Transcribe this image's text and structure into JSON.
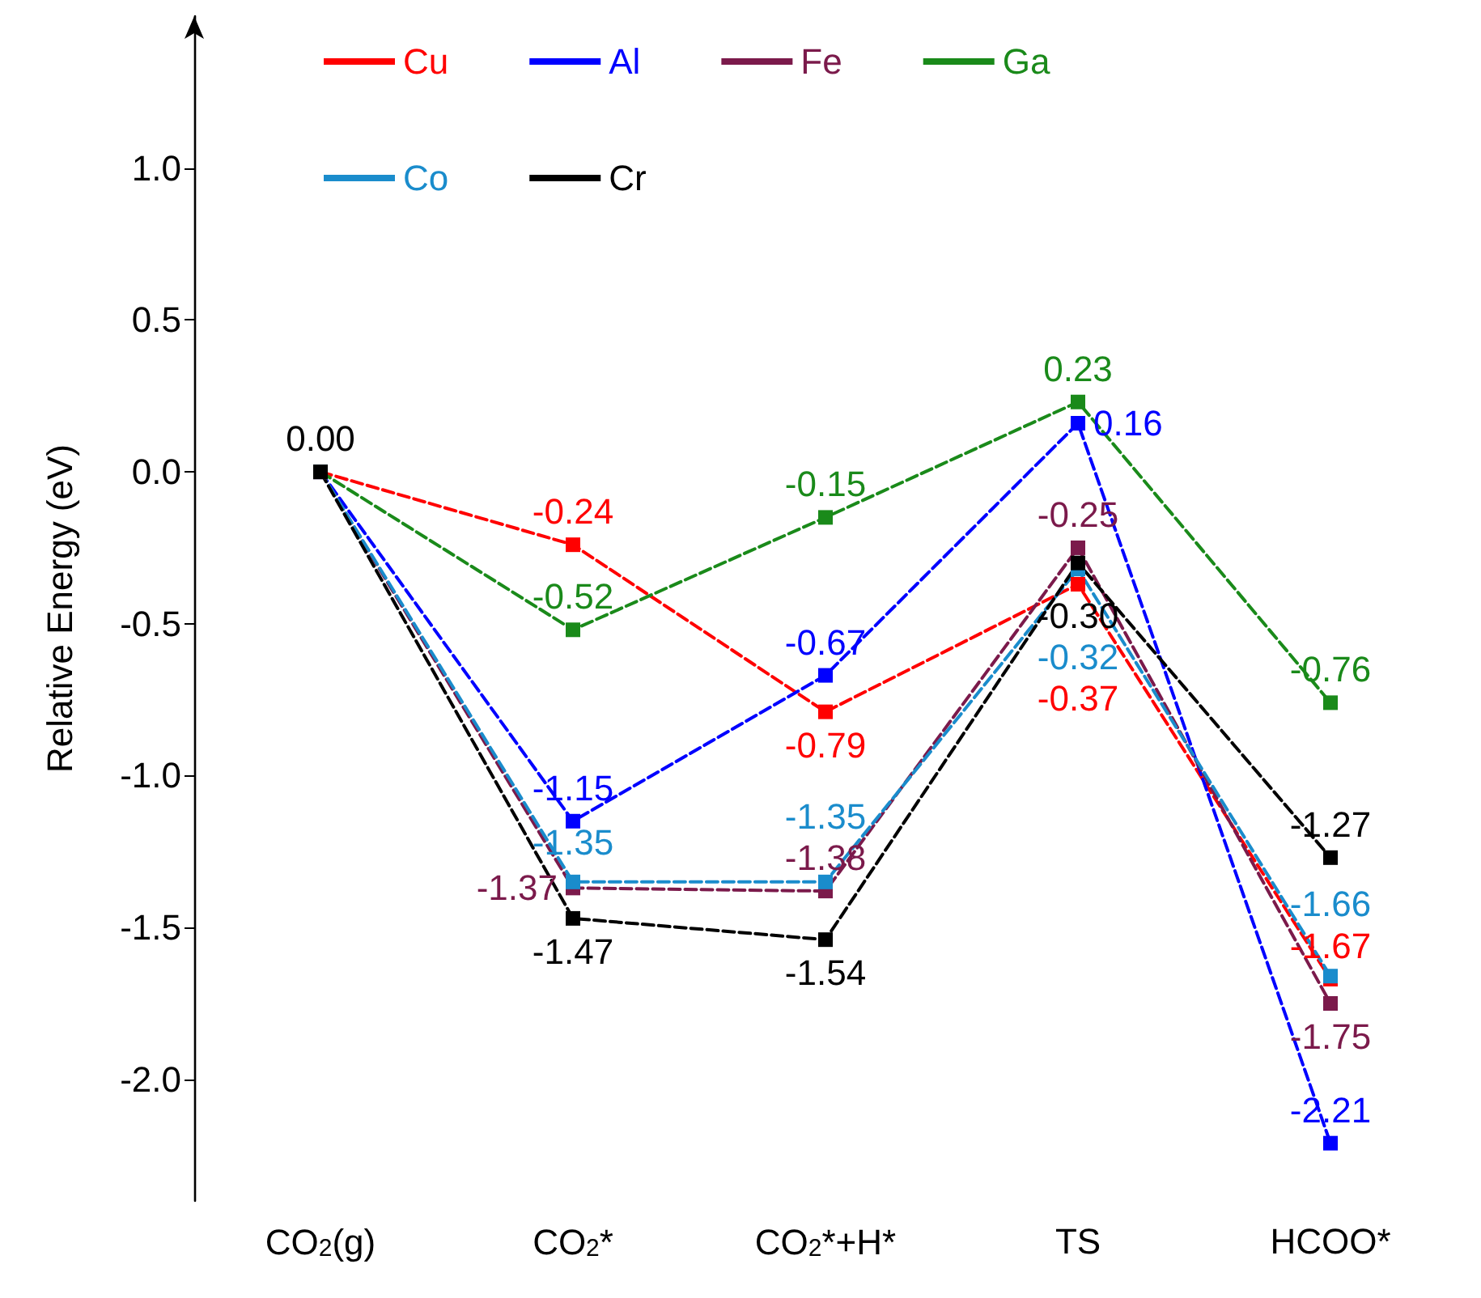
{
  "chart_data": {
    "type": "line",
    "ylabel": "Relative Energy (eV)",
    "categories": [
      "CO$_{2}$(g)",
      "CO$_{2}$*",
      "CO$_{2}$*+H*",
      "TS",
      "HCOO*"
    ],
    "series": [
      {
        "name": "Cu",
        "color": "#ff0000",
        "values": [
          0,
          -0.24,
          -0.79,
          -0.37,
          -1.67
        ],
        "value_labels": [
          null,
          "-0.24",
          "-0.79",
          "-0.37",
          "-1.67"
        ]
      },
      {
        "name": "Al",
        "color": "#0000ff",
        "values": [
          0,
          -1.15,
          -0.67,
          0.16,
          -2.21
        ],
        "value_labels": [
          null,
          "-1.15",
          "-0.67",
          "0.16",
          "-2.21"
        ]
      },
      {
        "name": "Fe",
        "color": "#7b1a4b",
        "values": [
          0,
          -1.37,
          -1.38,
          -0.25,
          -1.75
        ],
        "value_labels": [
          null,
          "-1.37",
          "-1.38",
          "-0.25",
          "-1.75"
        ]
      },
      {
        "name": "Ga",
        "color": "#1a8a1a",
        "values": [
          0,
          -0.52,
          -0.15,
          0.23,
          -0.76
        ],
        "value_labels": [
          null,
          "-0.52",
          "-0.15",
          "0.23",
          "-0.76"
        ]
      },
      {
        "name": "Co",
        "color": "#1a8ccc",
        "values": [
          0,
          -1.35,
          -1.35,
          -0.32,
          -1.66
        ],
        "value_labels": [
          null,
          "-1.35",
          "-1.35",
          "-0.32",
          "-1.66"
        ]
      },
      {
        "name": "Cr",
        "color": "#000000",
        "values": [
          0,
          -1.47,
          -1.54,
          -0.3,
          -1.27
        ],
        "value_labels": [
          "0.00",
          "-1.47",
          "-1.54",
          "-0.30",
          "-1.27"
        ]
      }
    ],
    "ylim": [
      -2.4,
      1.5
    ],
    "yticks": [
      {
        "value": -2,
        "label": "-2.0"
      },
      {
        "value": -1.5,
        "label": "-1.5"
      },
      {
        "value": -1,
        "label": "-1.0"
      },
      {
        "value": -0.5,
        "label": "-0.5"
      },
      {
        "value": 0,
        "label": "0.0"
      },
      {
        "value": 0.5,
        "label": "0.5"
      },
      {
        "value": 1,
        "label": "1.0"
      }
    ],
    "line_style": "dashed",
    "marker": "square",
    "grid": false,
    "legend": "top"
  }
}
